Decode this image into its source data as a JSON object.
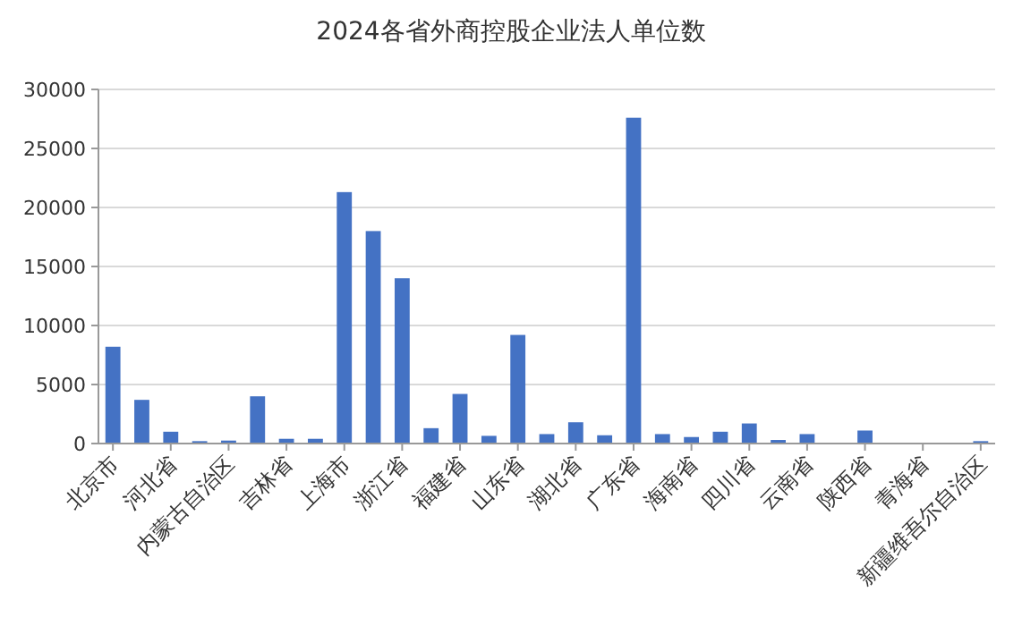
{
  "chart_data": {
    "type": "bar",
    "title": "2024各省外商控股企业法人单位数",
    "categories": [
      "北京市",
      null,
      "河北省",
      null,
      "内蒙古自治区",
      null,
      "吉林省",
      null,
      "上海市",
      null,
      "浙江省",
      null,
      "福建省",
      null,
      "山东省",
      null,
      "湖北省",
      null,
      "广东省",
      null,
      "海南省",
      null,
      "四川省",
      null,
      "云南省",
      null,
      "陕西省",
      null,
      "青海省",
      null,
      "新疆维吾尔自治区"
    ],
    "values": [
      8200,
      3700,
      1000,
      200,
      250,
      4000,
      400,
      400,
      21300,
      18000,
      14000,
      1300,
      4200,
      650,
      9200,
      800,
      1800,
      700,
      27600,
      800,
      550,
      1000,
      1700,
      300,
      800,
      50,
      1100,
      50,
      20,
      30,
      200
    ],
    "color": "#4472c4",
    "ylim": [
      0,
      30000
    ],
    "yticks": [
      0,
      5000,
      10000,
      15000,
      20000,
      25000,
      30000
    ],
    "grid": "y"
  }
}
